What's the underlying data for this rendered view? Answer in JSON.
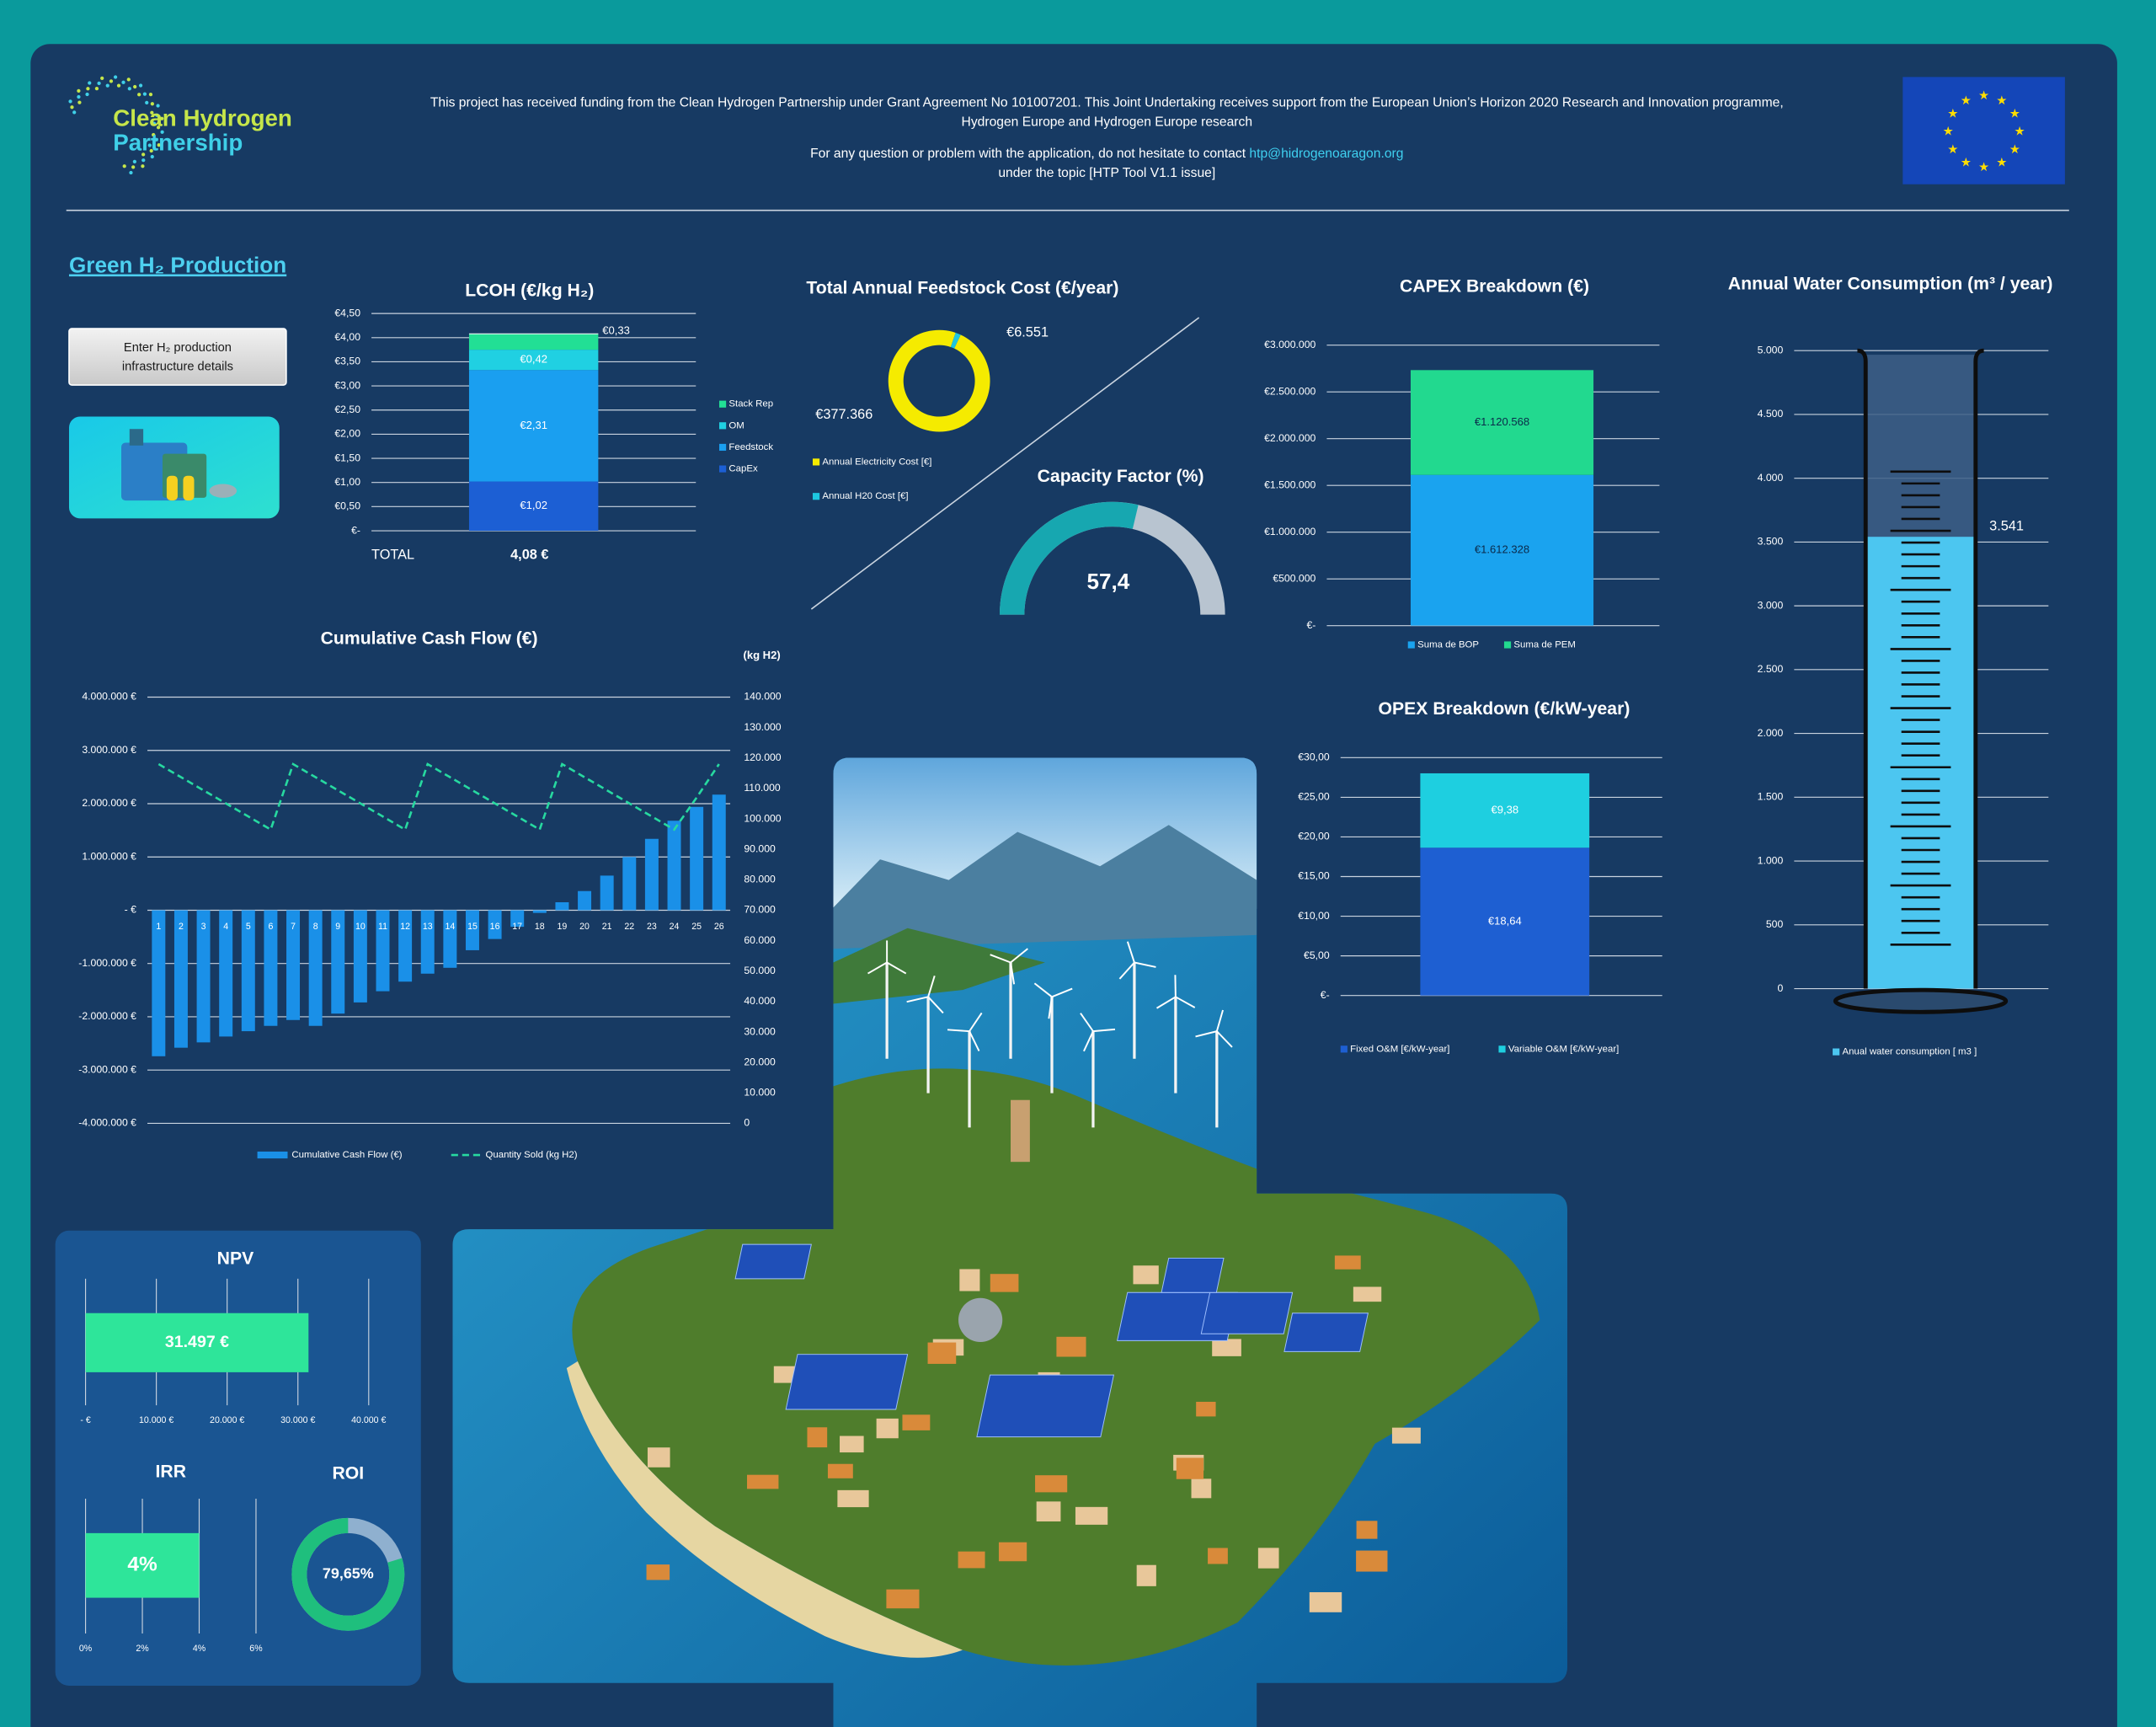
{
  "header": {
    "logo": [
      "Clean Hydrogen",
      "Partnership"
    ],
    "funding": [
      "This project has received funding from the Clean Hydrogen Partnership under Grant Agreement No 101007201. This Joint Undertaking receives support from the European Union’s Horizon 2020 Research and Innovation programme,",
      "Hydrogen Europe and Hydrogen Europe research"
    ],
    "contact": "For any question or problem with the application, do not hesitate to contact ",
    "email": "htp@hidrogenoaragon.org",
    "topic": "under the topic [HTP Tool V1.1 issue]",
    "section_title": "Green H₂ Production",
    "button": [
      "Enter H₂ production",
      "infrastructure details"
    ]
  },
  "chart_data": [
    {
      "type": "stacked_bar",
      "title": "LCOH (€/kg H₂)",
      "categories": [
        "TOTAL"
      ],
      "total": {
        "value": 4.08,
        "label": "4,08 €"
      },
      "series": [
        {
          "name": "CapEx",
          "color": "#1c5fd4",
          "values": [
            1.02
          ],
          "value_labels": [
            "€1,02"
          ]
        },
        {
          "name": "Feedstock",
          "color": "#1a9ff0",
          "values": [
            2.31
          ],
          "value_labels": [
            "€2,31"
          ]
        },
        {
          "name": "OM",
          "color": "#20d0e2",
          "values": [
            0.42
          ],
          "value_labels": [
            "€0,42"
          ]
        },
        {
          "name": "Stack Rep",
          "color": "#22df95",
          "values": [
            0.33
          ],
          "value_labels": [
            "€0,33"
          ]
        }
      ],
      "ylim": [
        0,
        4.5
      ],
      "yticks": [
        {
          "value": 0,
          "label": "€-"
        },
        {
          "value": 0.5,
          "label": "€0,50"
        },
        {
          "value": 1,
          "label": "€1,00"
        },
        {
          "value": 1.5,
          "label": "€1,50"
        },
        {
          "value": 2,
          "label": "€2,00"
        },
        {
          "value": 2.5,
          "label": "€2,50"
        },
        {
          "value": 3,
          "label": "€3,00"
        },
        {
          "value": 3.5,
          "label": "€3,50"
        },
        {
          "value": 4,
          "label": "€4,00"
        },
        {
          "value": 4.5,
          "label": "€4,50"
        }
      ],
      "grid": true
    },
    {
      "type": "pie",
      "title": "Total Annual Feedstock Cost (€/year)",
      "categories": [
        "Annual Electricity Cost [€]",
        "Annual H20 Cost [€]"
      ],
      "values": [
        377366,
        6551
      ],
      "value_labels": [
        "€377.366",
        "€6.551"
      ],
      "colors": [
        "#f5eb00",
        "#1dc6e0"
      ]
    },
    {
      "type": "gauge",
      "title": "Capacity Factor (%)",
      "values": [
        57.4
      ],
      "value_labels": [
        "57,4"
      ],
      "ylim": [
        0,
        100
      ],
      "color": "#17a7b0",
      "track_color": "#b8c4d0"
    },
    {
      "type": "stacked_bar",
      "title": "CAPEX Breakdown (€)",
      "categories": [
        null
      ],
      "series": [
        {
          "name": "Suma de BOP",
          "color": "#1aa3ef",
          "values": [
            1612328
          ],
          "value_labels": [
            "€1.612.328"
          ]
        },
        {
          "name": "Suma de PEM",
          "color": "#22d98f",
          "values": [
            1120568
          ],
          "value_labels": [
            "€1.120.568"
          ]
        }
      ],
      "ylim": [
        0,
        3000000
      ],
      "yticks": [
        {
          "value": 0,
          "label": "€-"
        },
        {
          "value": 500000,
          "label": "€500.000"
        },
        {
          "value": 1000000,
          "label": "€1.000.000"
        },
        {
          "value": 1500000,
          "label": "€1.500.000"
        },
        {
          "value": 2000000,
          "label": "€2.000.000"
        },
        {
          "value": 2500000,
          "label": "€2.500.000"
        },
        {
          "value": 3000000,
          "label": "€3.000.000"
        }
      ],
      "grid": true
    },
    {
      "type": "bar",
      "title": "Annual Water Consumption (m³ / year)",
      "series": [
        {
          "name": "Anual water consumption [ m3 ]",
          "color": "#4cc6f0",
          "values": [
            3541
          ],
          "value_labels": [
            "3.541"
          ]
        }
      ],
      "ylim": [
        0,
        5000
      ],
      "yticks": [
        0,
        500,
        {
          "value": 1000,
          "label": "1.000"
        },
        {
          "value": 1500,
          "label": "1.500"
        },
        {
          "value": 2000,
          "label": "2.000"
        },
        {
          "value": 2500,
          "label": "2.500"
        },
        {
          "value": 3000,
          "label": "3.000"
        },
        {
          "value": 3500,
          "label": "3.500"
        },
        {
          "value": 4000,
          "label": "4.000"
        },
        {
          "value": 4500,
          "label": "4.500"
        },
        {
          "value": 5000,
          "label": "5.000"
        }
      ],
      "grid": true
    },
    {
      "type": "combo",
      "title": "Cumulative Cash Flow (€)",
      "y2label": "(kg H2)",
      "x": [
        1,
        2,
        3,
        4,
        5,
        6,
        7,
        8,
        9,
        10,
        11,
        12,
        13,
        14,
        15,
        16,
        17,
        18,
        19,
        20,
        21,
        22,
        23,
        24,
        25,
        26
      ],
      "series": [
        {
          "name": "Cumulative Cash Flow (€)",
          "type": "bar",
          "color": "#1a90e8",
          "values": [
            -2740000,
            -2580000,
            -2480000,
            -2370000,
            -2270000,
            -2170000,
            -2060000,
            -2170000,
            -1940000,
            -1730000,
            -1520000,
            -1340000,
            -1190000,
            -1080000,
            -750000,
            -540000,
            -310000,
            -50000,
            150000,
            360000,
            650000,
            1000000,
            1340000,
            1680000,
            1940000,
            2170000
          ]
        },
        {
          "name": "Quantity Sold (kg H2)",
          "type": "line",
          "axis": "y2",
          "dash": true,
          "color": "#27d9a0",
          "values": [
            118000,
            113700,
            109400,
            105100,
            100800,
            96500,
            118000,
            113700,
            109400,
            105100,
            100800,
            96500,
            118000,
            113700,
            109400,
            105100,
            100800,
            96500,
            118000,
            113700,
            109400,
            105100,
            100800,
            96500,
            107000,
            118000
          ]
        }
      ],
      "ylim": [
        -4000000,
        4000000
      ],
      "yticks": [
        {
          "value": -4000000,
          "label": "-4.000.000 €"
        },
        {
          "value": -3000000,
          "label": "-3.000.000 €"
        },
        {
          "value": -2000000,
          "label": "-2.000.000 €"
        },
        {
          "value": -1000000,
          "label": "-1.000.000 €"
        },
        {
          "value": 0,
          "label": "- €"
        },
        {
          "value": 1000000,
          "label": "1.000.000 €"
        },
        {
          "value": 2000000,
          "label": "2.000.000 €"
        },
        {
          "value": 3000000,
          "label": "3.000.000 €"
        },
        {
          "value": 4000000,
          "label": "4.000.000 €"
        }
      ],
      "y2lim": [
        0,
        140000
      ],
      "y2ticks": [
        0,
        {
          "value": 10000,
          "label": "10.000"
        },
        {
          "value": 20000,
          "label": "20.000"
        },
        {
          "value": 30000,
          "label": "30.000"
        },
        {
          "value": 40000,
          "label": "40.000"
        },
        {
          "value": 50000,
          "label": "50.000"
        },
        {
          "value": 60000,
          "label": "60.000"
        },
        {
          "value": 70000,
          "label": "70.000"
        },
        {
          "value": 80000,
          "label": "80.000"
        },
        {
          "value": 90000,
          "label": "90.000"
        },
        {
          "value": 100000,
          "label": "100.000"
        },
        {
          "value": 110000,
          "label": "110.000"
        },
        {
          "value": 120000,
          "label": "120.000"
        },
        {
          "value": 130000,
          "label": "130.000"
        },
        {
          "value": 140000,
          "label": "140.000"
        }
      ],
      "grid": true
    },
    {
      "type": "stacked_bar",
      "title": "OPEX Breakdown (€/kW-year)",
      "categories": [
        null
      ],
      "series": [
        {
          "name": "Fixed O&M [€/kW-year]",
          "color": "#1e5fd2",
          "values": [
            18.64
          ],
          "value_labels": [
            "€18,64"
          ]
        },
        {
          "name": "Variable O&M [€/kW-year]",
          "color": "#1ecfe0",
          "values": [
            9.38
          ],
          "value_labels": [
            "€9,38"
          ]
        }
      ],
      "ylim": [
        0,
        30
      ],
      "yticks": [
        {
          "value": 0,
          "label": "€-"
        },
        {
          "value": 5,
          "label": "€5,00"
        },
        {
          "value": 10,
          "label": "€10,00"
        },
        {
          "value": 15,
          "label": "€15,00"
        },
        {
          "value": 20,
          "label": "€20,00"
        },
        {
          "value": 25,
          "label": "€25,00"
        },
        {
          "value": 30,
          "label": "€30,00"
        }
      ],
      "grid": true
    },
    {
      "type": "hbar",
      "title": "NPV",
      "values": [
        31497
      ],
      "value_labels": [
        "31.497 €"
      ],
      "color": "#2ee59a",
      "xlim": [
        0,
        40000
      ],
      "xticks": [
        {
          "value": 0,
          "label": "- €"
        },
        {
          "value": 10000,
          "label": "10.000 €"
        },
        {
          "value": 20000,
          "label": "20.000 €"
        },
        {
          "value": 30000,
          "label": "30.000 €"
        },
        {
          "value": 40000,
          "label": "40.000 €"
        }
      ],
      "grid": true
    },
    {
      "type": "hbar",
      "title": "IRR",
      "values": [
        4
      ],
      "value_labels": [
        "4%"
      ],
      "color": "#2ee59a",
      "xlim": [
        0,
        6
      ],
      "xticks": [
        {
          "value": 0,
          "label": "0%"
        },
        {
          "value": 2,
          "label": "2%"
        },
        {
          "value": 4,
          "label": "4%"
        },
        {
          "value": 6,
          "label": "6%"
        }
      ],
      "grid": true
    },
    {
      "type": "ring",
      "title": "ROI",
      "values": [
        79.65
      ],
      "value_labels": [
        "79,65%"
      ],
      "ylim": [
        0,
        100
      ],
      "color": "#1fbf7d",
      "track_color": "#8fb0cf"
    }
  ]
}
